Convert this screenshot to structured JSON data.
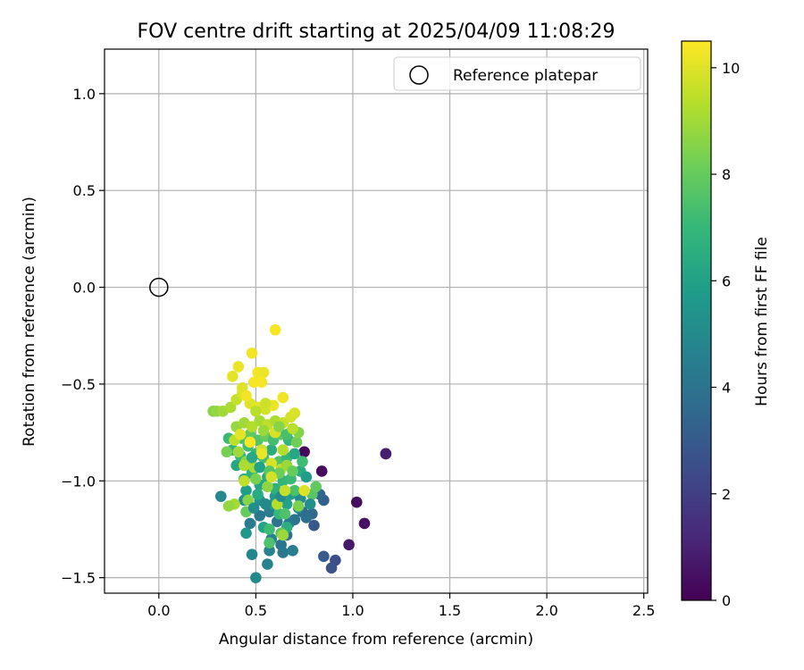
{
  "chart_data": {
    "type": "scatter",
    "title": "FOV centre drift starting at 2025/04/09 11:08:29",
    "xlabel": "Angular distance from reference (arcmin)",
    "ylabel": "Rotation from reference (arcmin)",
    "xlim": [
      -0.28,
      2.52
    ],
    "ylim": [
      -1.58,
      1.23
    ],
    "x_ticks": [
      0.0,
      0.5,
      1.0,
      1.5,
      2.0,
      2.5
    ],
    "x_tick_labels": [
      "0.0",
      "0.5",
      "1.0",
      "1.5",
      "2.0",
      "2.5"
    ],
    "y_ticks": [
      1.0,
      0.5,
      0.0,
      -0.5,
      -1.0,
      -1.5
    ],
    "y_tick_labels": [
      "1.0",
      "0.5",
      "0.0",
      "−0.5",
      "−1.0",
      "−1.5"
    ],
    "grid": true,
    "legend": {
      "placement": "upper-right",
      "entries": [
        {
          "label": "Reference platepar",
          "marker": "open-circle"
        }
      ]
    },
    "reference_point": {
      "x": 0.0,
      "y": 0.0
    },
    "colorbar": {
      "label": "Hours from first FF file",
      "range": [
        0,
        10.5
      ],
      "ticks": [
        0,
        2,
        4,
        6,
        8,
        10
      ],
      "tick_labels": [
        "0",
        "2",
        "4",
        "6",
        "8",
        "10"
      ],
      "colormap": "viridis",
      "color_stops": [
        "#440154",
        "#482878",
        "#3e4989",
        "#31688e",
        "#26828e",
        "#1f9e89",
        "#35b779",
        "#6ece58",
        "#b5de2b",
        "#fde725"
      ]
    },
    "points": [
      [
        1.17,
        -0.86,
        0.1
      ],
      [
        0.75,
        -0.85,
        0.2
      ],
      [
        0.84,
        -0.95,
        0.3
      ],
      [
        1.02,
        -1.11,
        0.4
      ],
      [
        1.06,
        -1.22,
        0.5
      ],
      [
        0.98,
        -1.33,
        0.7
      ],
      [
        1.17,
        -0.86,
        0.9
      ],
      [
        0.91,
        -1.41,
        2.5
      ],
      [
        0.89,
        -1.45,
        2.7
      ],
      [
        0.85,
        -1.39,
        3.0
      ],
      [
        0.8,
        -1.23,
        2.9
      ],
      [
        0.85,
        -1.1,
        3.2
      ],
      [
        0.83,
        -1.07,
        3.4
      ],
      [
        0.79,
        -1.17,
        3.5
      ],
      [
        0.74,
        -1.16,
        3.6
      ],
      [
        0.76,
        -1.19,
        3.8
      ],
      [
        0.7,
        -1.2,
        4.0
      ],
      [
        0.66,
        -1.28,
        3.9
      ],
      [
        0.63,
        -1.33,
        4.1
      ],
      [
        0.64,
        -1.37,
        4.3
      ],
      [
        0.69,
        -1.36,
        4.5
      ],
      [
        0.58,
        -1.3,
        4.6
      ],
      [
        0.57,
        -1.36,
        4.6
      ],
      [
        0.56,
        -1.43,
        4.7
      ],
      [
        0.48,
        -1.38,
        4.8
      ],
      [
        0.5,
        -1.5,
        4.9
      ],
      [
        0.47,
        -1.22,
        4.4
      ],
      [
        0.52,
        -1.18,
        4.2
      ],
      [
        0.57,
        -1.16,
        4.5
      ],
      [
        0.61,
        -1.21,
        4.0
      ],
      [
        0.67,
        -1.22,
        4.3
      ],
      [
        0.72,
        -1.14,
        4.8
      ],
      [
        0.32,
        -1.08,
        4.9
      ],
      [
        0.44,
        -1.1,
        5.2
      ],
      [
        0.52,
        -1.1,
        5.4
      ],
      [
        0.6,
        -1.08,
        5.6
      ],
      [
        0.68,
        -1.07,
        5.8
      ],
      [
        0.73,
        -1.09,
        5.0
      ],
      [
        0.54,
        -1.24,
        6.0
      ],
      [
        0.45,
        -1.27,
        5.5
      ],
      [
        0.66,
        -1.24,
        6.6
      ],
      [
        0.62,
        -1.17,
        7.0
      ],
      [
        0.57,
        -1.32,
        7.5
      ],
      [
        0.63,
        -1.27,
        7.8
      ],
      [
        0.4,
        -0.92,
        6.2
      ],
      [
        0.44,
        -0.99,
        6.5
      ],
      [
        0.48,
        -0.96,
        6.8
      ],
      [
        0.52,
        -1.02,
        6.1
      ],
      [
        0.56,
        -0.98,
        6.3
      ],
      [
        0.6,
        -1.04,
        6.7
      ],
      [
        0.64,
        -1.0,
        6.9
      ],
      [
        0.68,
        -0.99,
        7.1
      ],
      [
        0.7,
        -1.05,
        7.4
      ],
      [
        0.45,
        -1.05,
        5.9
      ],
      [
        0.51,
        -1.07,
        6.4
      ],
      [
        0.59,
        -1.12,
        5.7
      ],
      [
        0.66,
        -1.12,
        6.0
      ],
      [
        0.38,
        -0.84,
        6.6
      ],
      [
        0.42,
        -0.87,
        7.0
      ],
      [
        0.46,
        -0.82,
        7.2
      ],
      [
        0.5,
        -0.86,
        6.8
      ],
      [
        0.54,
        -0.88,
        7.3
      ],
      [
        0.58,
        -0.84,
        6.5
      ],
      [
        0.62,
        -0.9,
        7.6
      ],
      [
        0.66,
        -0.88,
        7.0
      ],
      [
        0.7,
        -0.86,
        6.2
      ],
      [
        0.73,
        -0.95,
        6.4
      ],
      [
        0.76,
        -0.98,
        5.8
      ],
      [
        0.79,
        -1.07,
        7.7
      ],
      [
        0.81,
        -1.03,
        7.9
      ],
      [
        0.43,
        -0.78,
        7.4
      ],
      [
        0.47,
        -0.76,
        7.9
      ],
      [
        0.51,
        -0.79,
        7.6
      ],
      [
        0.55,
        -0.77,
        8.0
      ],
      [
        0.59,
        -0.79,
        7.3
      ],
      [
        0.63,
        -0.76,
        7.8
      ],
      [
        0.67,
        -0.79,
        6.9
      ],
      [
        0.71,
        -0.8,
        8.2
      ],
      [
        0.72,
        -0.75,
        8.5
      ],
      [
        0.36,
        -0.78,
        7.1
      ],
      [
        0.35,
        -0.85,
        8.3
      ],
      [
        0.4,
        -0.72,
        8.8
      ],
      [
        0.44,
        -0.7,
        9.0
      ],
      [
        0.48,
        -0.72,
        9.3
      ],
      [
        0.52,
        -0.69,
        9.1
      ],
      [
        0.56,
        -0.71,
        9.5
      ],
      [
        0.6,
        -0.69,
        9.2
      ],
      [
        0.64,
        -0.7,
        9.6
      ],
      [
        0.68,
        -0.67,
        9.8
      ],
      [
        0.39,
        -0.79,
        9.4
      ],
      [
        0.41,
        -0.85,
        9.0
      ],
      [
        0.45,
        -0.9,
        8.7
      ],
      [
        0.49,
        -0.93,
        9.1
      ],
      [
        0.53,
        -0.84,
        9.7
      ],
      [
        0.58,
        -0.91,
        9.9
      ],
      [
        0.63,
        -0.94,
        9.4
      ],
      [
        0.66,
        -0.92,
        8.9
      ],
      [
        0.7,
        -0.65,
        9.9
      ],
      [
        0.28,
        -0.64,
        8.6
      ],
      [
        0.3,
        -0.64,
        8.8
      ],
      [
        0.33,
        -0.64,
        9.0
      ],
      [
        0.37,
        -0.62,
        9.2
      ],
      [
        0.4,
        -0.58,
        9.6
      ],
      [
        0.43,
        -0.55,
        9.9
      ],
      [
        0.47,
        -0.6,
        10.0
      ],
      [
        0.51,
        -0.62,
        10.1
      ],
      [
        0.55,
        -0.63,
        9.8
      ],
      [
        0.59,
        -0.61,
        10.2
      ],
      [
        0.64,
        -0.57,
        10.3
      ],
      [
        0.38,
        -0.46,
        10.1
      ],
      [
        0.41,
        -0.41,
        10.2
      ],
      [
        0.43,
        -0.52,
        10.0
      ],
      [
        0.45,
        -0.56,
        10.3
      ],
      [
        0.49,
        -0.49,
        10.4
      ],
      [
        0.51,
        -0.44,
        10.3
      ],
      [
        0.54,
        -0.44,
        10.2
      ],
      [
        0.53,
        -0.49,
        10.4
      ],
      [
        0.48,
        -0.34,
        10.3
      ],
      [
        0.6,
        -0.22,
        10.4
      ],
      [
        0.55,
        -0.6,
        9.7
      ],
      [
        0.5,
        -0.64,
        9.4
      ],
      [
        0.54,
        -0.74,
        8.9
      ],
      [
        0.46,
        -1.1,
        8.6
      ],
      [
        0.5,
        -0.99,
        8.3
      ],
      [
        0.56,
        -1.03,
        8.7
      ],
      [
        0.62,
        -0.96,
        8.1
      ],
      [
        0.64,
        -0.84,
        9.3
      ],
      [
        0.6,
        -0.75,
        9.9
      ],
      [
        0.53,
        -0.86,
        10.2
      ],
      [
        0.47,
        -0.8,
        10.4
      ],
      [
        0.42,
        -0.76,
        10.1
      ],
      [
        0.39,
        -1.12,
        9.1
      ],
      [
        0.36,
        -1.13,
        8.8
      ],
      [
        0.44,
        -1.0,
        9.5
      ],
      [
        0.61,
        -1.12,
        9.3
      ],
      [
        0.64,
        -1.28,
        8.9
      ],
      [
        0.45,
        -1.16,
        8.0
      ],
      [
        0.57,
        -1.25,
        7.2
      ],
      [
        0.65,
        -1.17,
        7.5
      ],
      [
        0.75,
        -1.05,
        10.0
      ],
      [
        0.72,
        -1.13,
        8.4
      ],
      [
        0.78,
        -1.12,
        5.2
      ],
      [
        0.63,
        -1.08,
        5.0
      ],
      [
        0.55,
        -1.12,
        4.9
      ],
      [
        0.49,
        -1.14,
        5.1
      ],
      [
        0.52,
        -0.93,
        6.0
      ],
      [
        0.48,
        -0.88,
        6.3
      ],
      [
        0.57,
        -0.95,
        7.7
      ],
      [
        0.69,
        -0.95,
        8.0
      ],
      [
        0.74,
        -0.9,
        7.2
      ],
      [
        0.65,
        -1.05,
        9.6
      ],
      [
        0.58,
        -0.98,
        9.8
      ],
      [
        0.44,
        -0.92,
        9.2
      ],
      [
        0.62,
        -0.72,
        8.6
      ],
      [
        0.66,
        -0.76,
        7.4
      ],
      [
        0.69,
        -0.73,
        9.4
      ]
    ]
  }
}
